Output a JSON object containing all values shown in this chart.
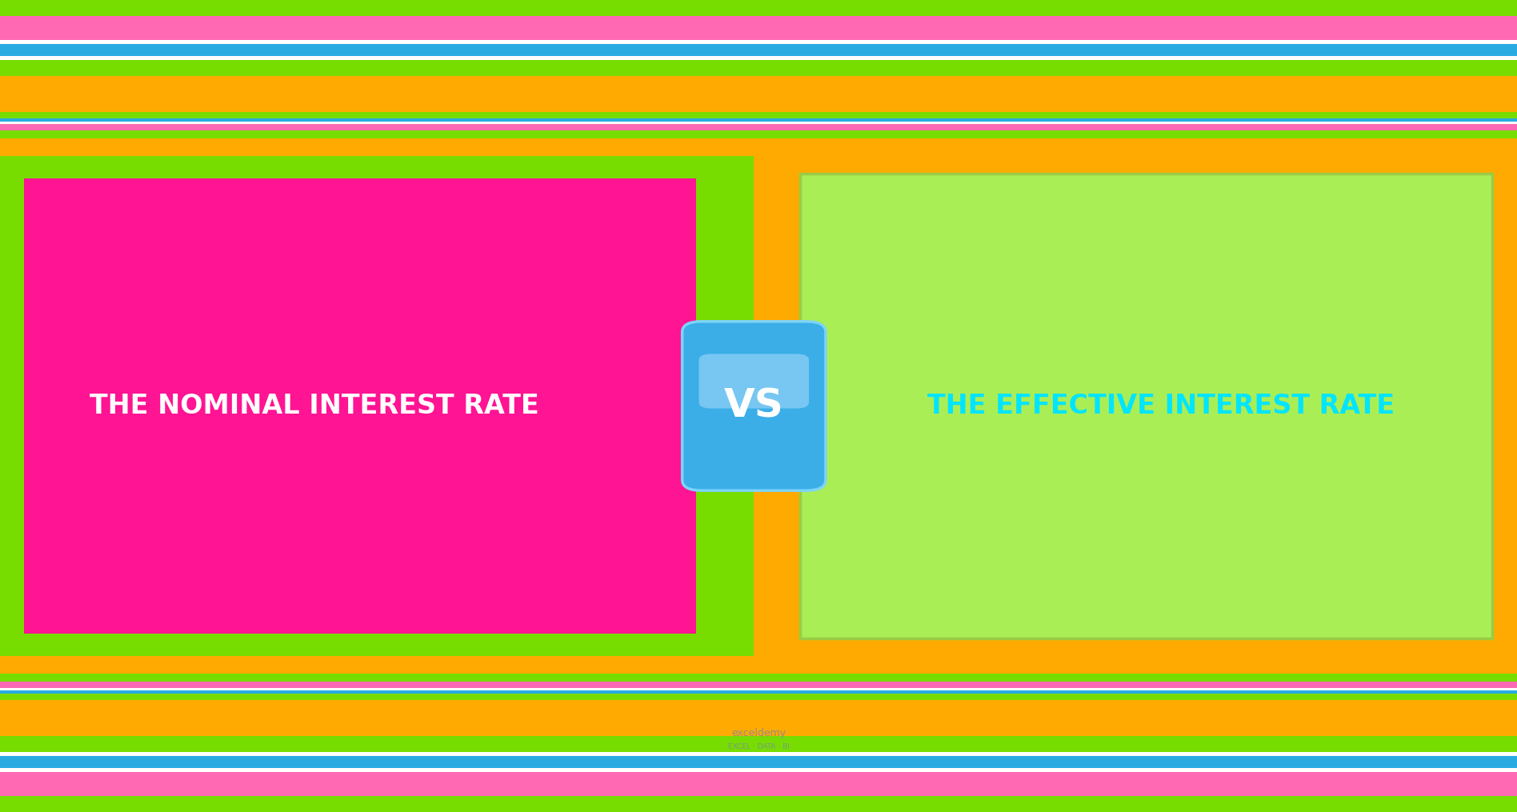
{
  "orange": "#FFAA00",
  "lime": "#77DD00",
  "lime_inner": "#88EE00",
  "lime_right_box": "#AAEE55",
  "pink": "#FF1493",
  "pink_stripe": "#FF69B4",
  "blue_stripe": "#29ABE2",
  "white": "#FFFFFF",
  "cyan_text": "#00E5FF",
  "vs_blue": "#3BAEE8",
  "vs_blue_light": "#7DD4F7",
  "left_text": "THE NOMINAL INTEREST RATE",
  "right_text": "THE EFFECTIVE INTEREST RATE",
  "vs_text": "VS",
  "watermark": "exceldemy",
  "watermark_sub": "EXCEL · DATA · BI",
  "fig_w": 18.96,
  "fig_h": 10.15,
  "dpi": 100
}
